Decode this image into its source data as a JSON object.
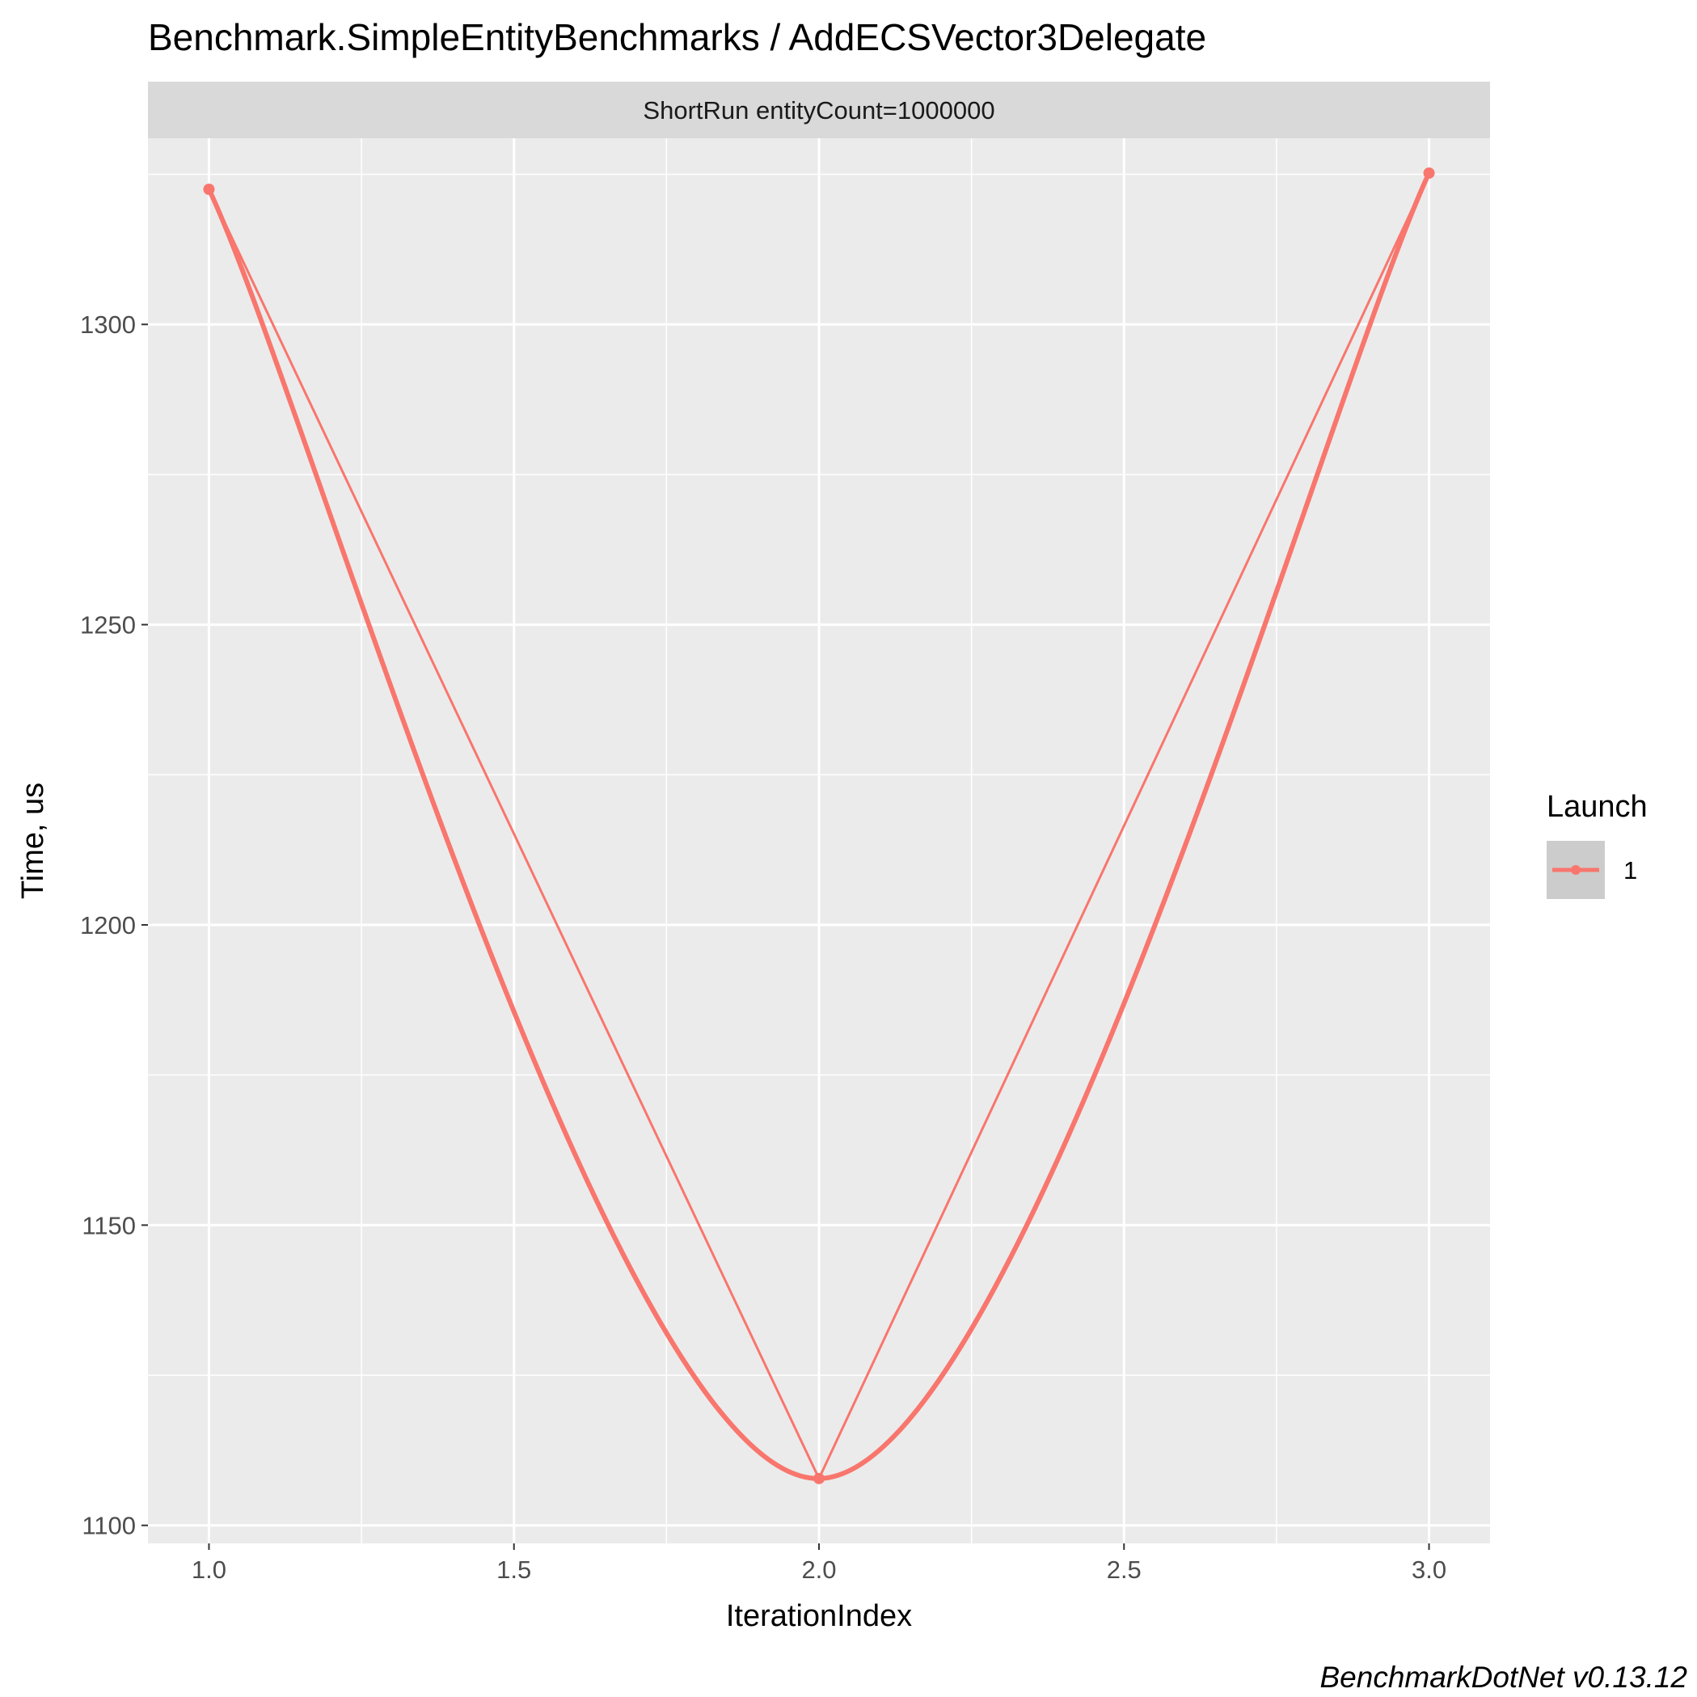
{
  "chart_data": {
    "type": "line",
    "title": "Benchmark.SimpleEntityBenchmarks / AddECSVector3Delegate",
    "facet_label": "ShortRun entityCount=1000000",
    "xlabel": "IterationIndex",
    "ylabel": "Time, us",
    "x_ticks": [
      1.0,
      1.5,
      2.0,
      2.5,
      3.0
    ],
    "x_tick_labels": [
      "1.0",
      "1.5",
      "2.0",
      "2.5",
      "3.0"
    ],
    "y_ticks": [
      1100,
      1150,
      1200,
      1250,
      1300
    ],
    "y_tick_labels": [
      "1100",
      "1150",
      "1200",
      "1250",
      "1300"
    ],
    "xlim": [
      0.9,
      3.1
    ],
    "ylim": [
      1097,
      1331
    ],
    "grid": true,
    "legend_position": "right",
    "legend_title": "Launch",
    "series": [
      {
        "name": "1",
        "x": [
          1,
          2,
          3
        ],
        "y": [
          1322.5,
          1107.8,
          1325.2
        ],
        "color": "#F8766D"
      }
    ],
    "smooth": true,
    "caption": "BenchmarkDotNet v0.13.12",
    "colors": {
      "panel_bg": "#EBEBEB",
      "strip_bg": "#D9D9D9",
      "grid": "#FFFFFF",
      "legend_key_bg": "#CCCCCC"
    }
  }
}
